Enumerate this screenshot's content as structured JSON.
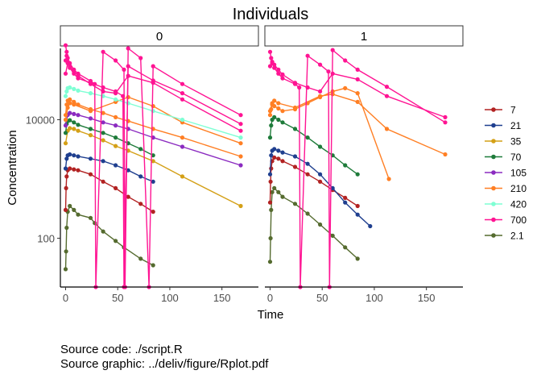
{
  "chart_data": {
    "type": "line",
    "title": "Individuals",
    "xlabel": "Time",
    "ylabel": "Concentration",
    "yscale": "log10",
    "xlim": [
      -5,
      185
    ],
    "ylim": [
      15,
      160000
    ],
    "x_ticks": [
      0,
      50,
      100,
      150
    ],
    "y_ticks": [
      100,
      10000
    ],
    "legend_position": "right",
    "facets": [
      "0",
      "1"
    ],
    "colors": {
      "2.1": "#556B2F",
      "7": "#B22222",
      "21": "#1F3F8F",
      "35": "#D4A017",
      "70": "#1E7B3A",
      "105": "#8B2BC0",
      "210": "#FF7F24",
      "420": "#7FFFD4",
      "700": "#FF1493"
    },
    "series": [
      {
        "name": "2.1",
        "panel": "0",
        "x": [
          0,
          0.5,
          1,
          2,
          4,
          8,
          12,
          24,
          28,
          36,
          48,
          56,
          72,
          84
        ],
        "y": [
          30,
          60,
          150,
          280,
          350,
          300,
          250,
          220,
          180,
          130,
          90,
          70,
          45,
          35
        ]
      },
      {
        "name": "2.1",
        "panel": "1",
        "x": [
          0,
          0.5,
          1,
          2,
          4,
          8,
          12,
          24,
          36,
          48,
          60,
          72,
          84
        ],
        "y": [
          40,
          100,
          300,
          600,
          700,
          600,
          500,
          380,
          260,
          170,
          110,
          70,
          45
        ]
      },
      {
        "name": "7",
        "panel": "0",
        "x": [
          0,
          0.5,
          1,
          2,
          4,
          8,
          12,
          24,
          36,
          48,
          60,
          72,
          84
        ],
        "y": [
          300,
          700,
          1100,
          1400,
          1500,
          1450,
          1400,
          1200,
          900,
          700,
          500,
          380,
          280
        ]
      },
      {
        "name": "7",
        "panel": "1",
        "x": [
          0,
          0.5,
          1,
          2,
          4,
          8,
          12,
          24,
          36,
          48,
          60,
          72,
          84
        ],
        "y": [
          400,
          900,
          1500,
          2000,
          2300,
          2200,
          2000,
          1600,
          1200,
          900,
          650,
          480,
          350
        ]
      },
      {
        "name": "21",
        "panel": "0",
        "x": [
          0,
          1,
          2,
          4,
          8,
          12,
          24,
          36,
          48,
          60,
          72,
          84
        ],
        "y": [
          1500,
          2200,
          2500,
          2600,
          2500,
          2400,
          2200,
          2000,
          1700,
          1400,
          1100,
          900
        ]
      },
      {
        "name": "21",
        "panel": "1",
        "x": [
          0,
          1,
          2,
          4,
          8,
          12,
          24,
          36,
          48,
          60,
          72,
          84,
          96
        ],
        "y": [
          1200,
          2500,
          3000,
          3200,
          3000,
          2800,
          2400,
          1800,
          1200,
          700,
          400,
          250,
          160
        ]
      },
      {
        "name": "35",
        "panel": "0",
        "x": [
          0,
          2,
          4,
          8,
          12,
          24,
          36,
          48,
          60,
          84,
          112,
          168
        ],
        "y": [
          4000,
          6500,
          7200,
          7000,
          6500,
          5500,
          4500,
          3600,
          3000,
          2000,
          1100,
          350
        ]
      },
      {
        "name": "70",
        "panel": "0",
        "x": [
          0,
          1,
          2,
          4,
          8,
          12,
          24,
          36,
          48,
          60,
          72,
          84
        ],
        "y": [
          6000,
          8500,
          9500,
          9800,
          9000,
          8200,
          7000,
          6000,
          5000,
          4000,
          3200,
          2500
        ]
      },
      {
        "name": "70",
        "panel": "1",
        "x": [
          0,
          1,
          2,
          4,
          8,
          12,
          24,
          36,
          48,
          60,
          72,
          84
        ],
        "y": [
          5000,
          8000,
          10000,
          11000,
          10000,
          9000,
          7000,
          5000,
          3500,
          2500,
          1700,
          1200
        ]
      },
      {
        "name": "105",
        "panel": "0",
        "x": [
          0,
          2,
          4,
          8,
          12,
          24,
          36,
          48,
          60,
          84,
          112,
          168
        ],
        "y": [
          8000,
          12000,
          13000,
          12500,
          12000,
          10500,
          9000,
          8000,
          7000,
          5000,
          3500,
          1700
        ]
      },
      {
        "name": "210",
        "panel": "0",
        "x": [
          0,
          1,
          2,
          4,
          8,
          12,
          24,
          36,
          48,
          60,
          84,
          112,
          168
        ],
        "y": [
          12000,
          18000,
          21000,
          22000,
          20000,
          18000,
          15000,
          13000,
          11000,
          9500,
          7000,
          5000,
          2400
        ]
      },
      {
        "name": "210",
        "panel": "0",
        "x": [
          0,
          2,
          4,
          8,
          24,
          48,
          60,
          84,
          112,
          168
        ],
        "y": [
          10000,
          16000,
          19000,
          18000,
          14000,
          20000,
          24000,
          17000,
          9000,
          4000
        ]
      },
      {
        "name": "210",
        "panel": "1",
        "x": [
          0,
          1,
          2,
          4,
          8,
          12,
          24,
          36,
          48,
          60,
          72,
          84,
          114
        ],
        "y": [
          12000,
          15000,
          18000,
          17000,
          15500,
          14000,
          15000,
          19000,
          24000,
          30000,
          34000,
          28000,
          1000
        ]
      },
      {
        "name": "210",
        "panel": "1",
        "x": [
          0,
          2,
          4,
          8,
          24,
          48,
          60,
          84,
          112,
          168
        ],
        "y": [
          14000,
          19000,
          21000,
          19000,
          16000,
          25000,
          27000,
          20000,
          7000,
          2600
        ]
      },
      {
        "name": "420",
        "panel": "0",
        "x": [
          0,
          1,
          2,
          4,
          8,
          12,
          24,
          36,
          48,
          60,
          84,
          112,
          168
        ],
        "y": [
          25000,
          30000,
          34000,
          35000,
          33000,
          31000,
          28000,
          25000,
          22000,
          19000,
          14000,
          10000,
          5000
        ]
      },
      {
        "name": "700",
        "panel": "0",
        "x": [
          0,
          1,
          2,
          4,
          8,
          12,
          24,
          28,
          29,
          36,
          48,
          56,
          57,
          60,
          72,
          80,
          84,
          112,
          168
        ],
        "y": [
          180000,
          140000,
          110000,
          90000,
          70000,
          60000,
          45000,
          40000,
          15,
          140000,
          100000,
          70000,
          15,
          160000,
          110000,
          15,
          80000,
          40000,
          12000
        ]
      },
      {
        "name": "700",
        "panel": "0",
        "x": [
          0,
          2,
          4,
          8,
          12,
          24,
          36,
          48,
          60,
          84,
          112,
          168
        ],
        "y": [
          60000,
          90000,
          80000,
          65000,
          55000,
          40000,
          30000,
          28000,
          55000,
          42000,
          22000,
          6500
        ]
      },
      {
        "name": "700",
        "panel": "0",
        "x": [
          0,
          1,
          2,
          4,
          8,
          12,
          24,
          36,
          48,
          55,
          56,
          60,
          84,
          112,
          168
        ],
        "y": [
          100000,
          120000,
          95000,
          75000,
          60000,
          50000,
          42000,
          35000,
          30000,
          25000,
          15,
          80000,
          46000,
          28000,
          8500
        ]
      },
      {
        "name": "700",
        "panel": "1",
        "x": [
          0,
          1,
          2,
          4,
          8,
          12,
          24,
          28,
          29,
          36,
          48,
          56,
          57,
          60,
          72,
          84,
          112,
          168
        ],
        "y": [
          140000,
          110000,
          90000,
          75000,
          60000,
          50000,
          40000,
          35000,
          15,
          120000,
          85000,
          65000,
          15,
          150000,
          100000,
          70000,
          36000,
          9000
        ]
      },
      {
        "name": "700",
        "panel": "1",
        "x": [
          0,
          2,
          4,
          8,
          12,
          24,
          36,
          48,
          60,
          84,
          112,
          168
        ],
        "y": [
          80000,
          95000,
          85000,
          70000,
          58000,
          42000,
          35000,
          30000,
          60000,
          48000,
          25000,
          11000
        ]
      }
    ]
  },
  "caption": {
    "line1": "Source code: ./script.R",
    "line2": "Source graphic: ../deliv/figure/Rplot.pdf"
  }
}
